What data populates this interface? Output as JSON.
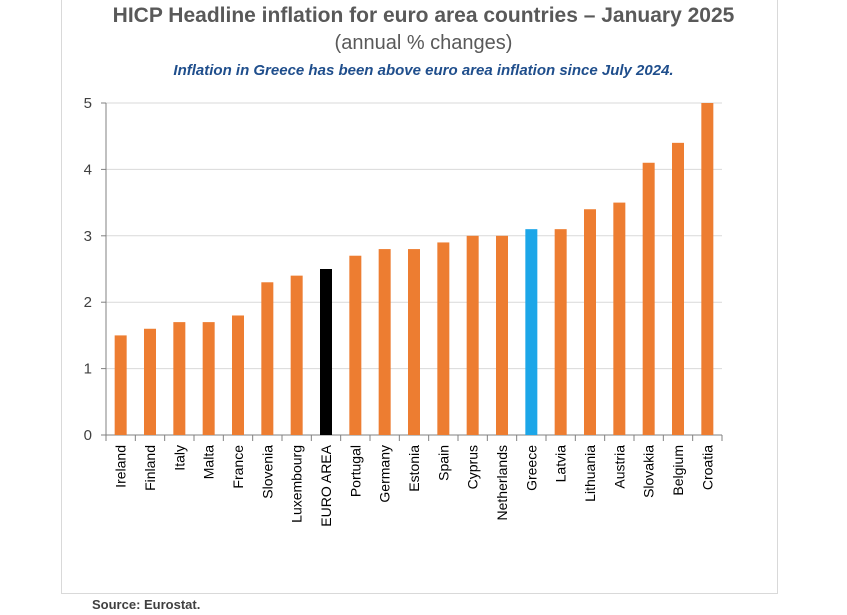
{
  "chart_data": {
    "type": "bar",
    "title": "HICP Headline inflation for euro area countries – January 2025",
    "subtitle": "(annual % changes)",
    "annotation": "Inflation in Greece has been above euro area inflation since July 2024.",
    "source": "Source: Eurostat.",
    "categories": [
      "Ireland",
      "Finland",
      "Italy",
      "Malta",
      "France",
      "Slovenia",
      "Luxembourg",
      "EURO AREA",
      "Portugal",
      "Germany",
      "Estonia",
      "Spain",
      "Cyprus",
      "Netherlands",
      "Greece",
      "Latvia",
      "Lithuania",
      "Austria",
      "Slovakia",
      "Belgium",
      "Croatia"
    ],
    "values": [
      1.5,
      1.6,
      1.7,
      1.7,
      1.8,
      2.3,
      2.4,
      2.5,
      2.7,
      2.8,
      2.8,
      2.9,
      3.0,
      3.0,
      3.1,
      3.1,
      3.4,
      3.5,
      4.1,
      4.4,
      5.0
    ],
    "ylim": [
      0,
      5
    ],
    "yticks": [
      "0",
      "1",
      "2",
      "3",
      "4",
      "5"
    ],
    "xlabel": "",
    "ylabel": "",
    "grid": "horizontal",
    "colors": {
      "default": "#ED7D31",
      "EURO AREA": "#000000",
      "Greece": "#1CA6E8",
      "grid": "#d9d9d9",
      "axis": "#808080"
    }
  }
}
